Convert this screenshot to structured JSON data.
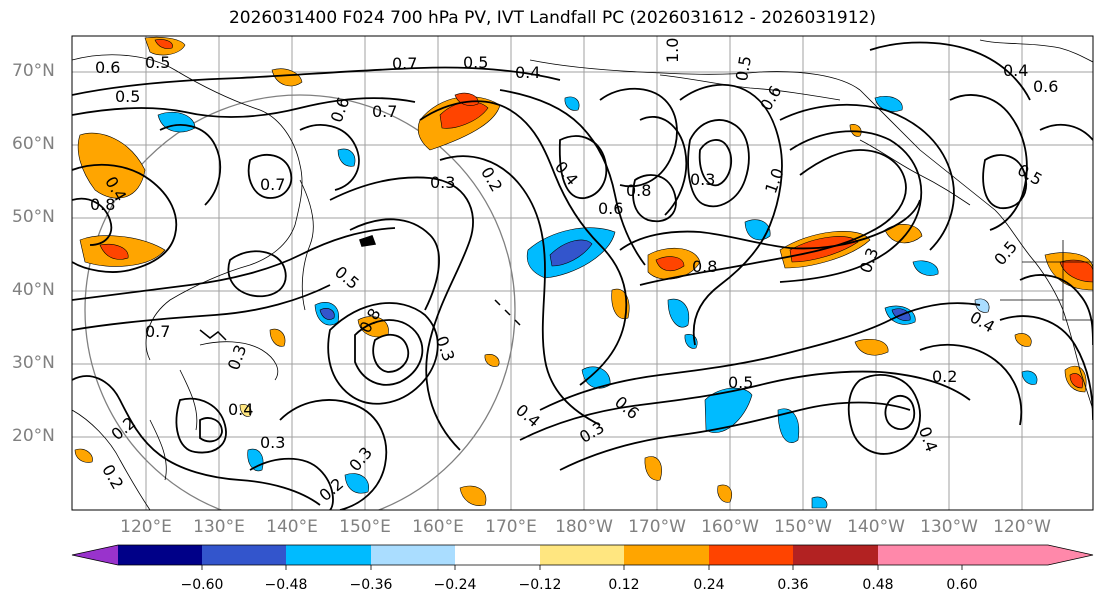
{
  "title": "2026031400 F024 700 hPa PV, IVT Landfall PC (2026031612 - 2026031912)",
  "lat_labels": [
    "70°N",
    "60°N",
    "50°N",
    "40°N",
    "30°N",
    "20°N"
  ],
  "lon_labels": [
    "120°E",
    "130°E",
    "140°E",
    "150°E",
    "160°E",
    "170°E",
    "180°W",
    "170°W",
    "160°W",
    "150°W",
    "140°W",
    "130°W",
    "120°W"
  ],
  "colorbar": {
    "colors": [
      "#9933cc",
      "#000088",
      "#3355cc",
      "#00bbff",
      "#aaddff",
      "#ffffff",
      "#ffe680",
      "#ffa500",
      "#ff4400",
      "#b22222",
      "#ff88aa"
    ],
    "ticks": [
      "−0.60",
      "−0.48",
      "−0.36",
      "−0.24",
      "−0.12",
      "0.12",
      "0.24",
      "0.36",
      "0.48",
      "0.60"
    ]
  },
  "contour_labels": [
    {
      "text": "0.5"
    },
    {
      "text": "0.7"
    },
    {
      "text": "0.5"
    },
    {
      "text": "0.4"
    },
    {
      "text": "1.0"
    },
    {
      "text": "0.6"
    },
    {
      "text": "0.7"
    },
    {
      "text": "0.6"
    },
    {
      "text": "0.3"
    },
    {
      "text": "0.2"
    },
    {
      "text": "0.4"
    },
    {
      "text": "0.8"
    },
    {
      "text": "0.6"
    },
    {
      "text": "1.0"
    },
    {
      "text": "0.8"
    },
    {
      "text": "0.5"
    },
    {
      "text": "0.3"
    },
    {
      "text": "0.6"
    },
    {
      "text": "0.4"
    },
    {
      "text": "0.5"
    },
    {
      "text": "0.4"
    },
    {
      "text": "0.6"
    },
    {
      "text": "0.5"
    },
    {
      "text": "0.7"
    },
    {
      "text": "0.3"
    },
    {
      "text": "0.8"
    },
    {
      "text": "0.3"
    },
    {
      "text": "0.3"
    },
    {
      "text": "0.2"
    },
    {
      "text": "0.4"
    },
    {
      "text": "0.3"
    },
    {
      "text": "0.2"
    },
    {
      "text": "0.3"
    },
    {
      "text": "0.2"
    },
    {
      "text": "0.4"
    },
    {
      "text": "0.5"
    },
    {
      "text": "0.6"
    },
    {
      "text": "0.3"
    },
    {
      "text": "0.5"
    },
    {
      "text": "0.2"
    },
    {
      "text": "0.4"
    },
    {
      "text": "0.8"
    },
    {
      "text": "0.7"
    },
    {
      "text": "0.5"
    },
    {
      "text": "0.4"
    }
  ]
}
